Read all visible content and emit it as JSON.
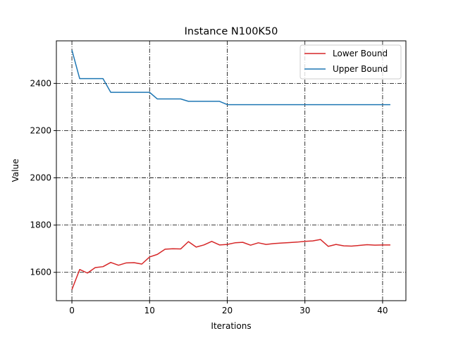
{
  "chart_data": {
    "type": "line",
    "title": "Instance N100K50",
    "xlabel": "Iterations",
    "ylabel": "Value",
    "xlim": [
      -2,
      43
    ],
    "ylim": [
      1480,
      2580
    ],
    "xticks": [
      0,
      10,
      20,
      30,
      40
    ],
    "yticks": [
      1600,
      1800,
      2000,
      2200,
      2400
    ],
    "grid": true,
    "legend": "top-right",
    "series": [
      {
        "name": "Lower Bound",
        "color": "#d62728",
        "x": [
          0,
          1,
          2,
          3,
          4,
          5,
          6,
          7,
          8,
          9,
          10,
          11,
          12,
          13,
          14,
          15,
          16,
          17,
          18,
          19,
          20,
          21,
          22,
          23,
          24,
          25,
          26,
          27,
          28,
          29,
          30,
          31,
          32,
          33,
          34,
          35,
          36,
          37,
          38,
          39,
          40,
          41
        ],
        "values": [
          1527,
          1612,
          1597,
          1620,
          1624,
          1642,
          1630,
          1640,
          1641,
          1635,
          1665,
          1676,
          1698,
          1700,
          1699,
          1730,
          1707,
          1716,
          1731,
          1716,
          1718,
          1725,
          1727,
          1715,
          1725,
          1718,
          1722,
          1724,
          1726,
          1728,
          1731,
          1733,
          1739,
          1710,
          1718,
          1712,
          1711,
          1714,
          1717,
          1715,
          1716,
          1716
        ]
      },
      {
        "name": "Upper Bound",
        "color": "#1f77b4",
        "x": [
          0,
          1,
          2,
          3,
          4,
          5,
          6,
          7,
          8,
          9,
          10,
          11,
          12,
          13,
          14,
          15,
          16,
          17,
          18,
          19,
          20,
          21,
          22,
          23,
          24,
          25,
          26,
          27,
          28,
          29,
          30,
          31,
          32,
          33,
          34,
          35,
          36,
          37,
          38,
          39,
          40,
          41
        ],
        "values": [
          2541,
          2420,
          2420,
          2420,
          2420,
          2362,
          2362,
          2362,
          2362,
          2362,
          2362,
          2334,
          2334,
          2334,
          2334,
          2324,
          2324,
          2324,
          2324,
          2324,
          2310,
          2310,
          2310,
          2310,
          2310,
          2310,
          2310,
          2310,
          2310,
          2310,
          2310,
          2310,
          2310,
          2310,
          2310,
          2310,
          2310,
          2310,
          2310,
          2310,
          2310,
          2310
        ]
      }
    ]
  }
}
